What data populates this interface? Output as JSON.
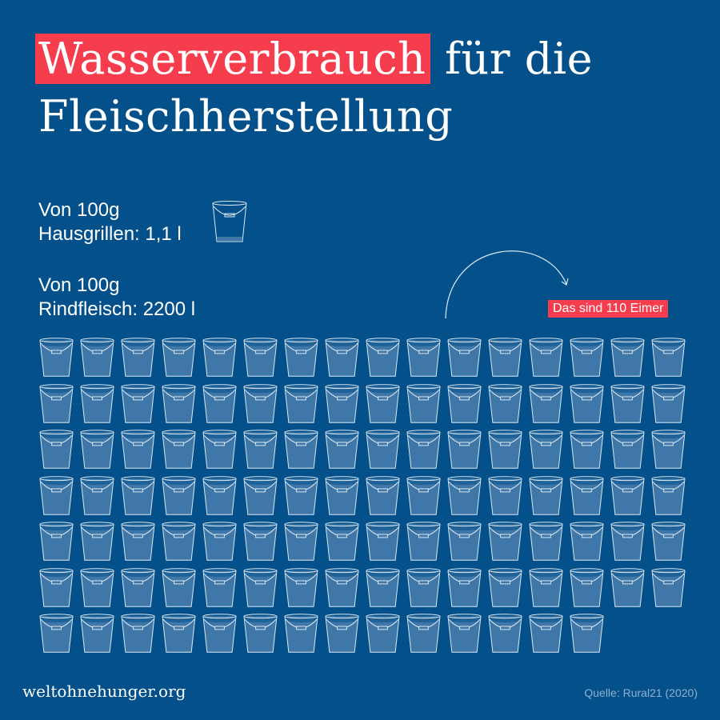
{
  "title": {
    "highlight": "Wasserverbrauch",
    "rest": " für die",
    "line2": "Fleischherstellung"
  },
  "crickets": {
    "line1": "Von 100g",
    "line2": "Hausgrillen: 1,1 l"
  },
  "beef": {
    "line1": "Von 100g",
    "line2": "Rindfleisch: 2200 l"
  },
  "badge": "Das sind 110 Eimer",
  "footer": {
    "brand": "weltohnehunger.org",
    "source": "Quelle: Rural21 (2020)"
  },
  "colors": {
    "background": "#03508a",
    "accent": "#f53d4e",
    "bucket_fill": "#3f78a8",
    "stroke": "#dce8f3"
  },
  "chart_data": {
    "type": "pictogram",
    "title": "Wasserverbrauch für die Fleischherstellung",
    "unit": "Liter pro 100g",
    "categories": [
      "Hausgrillen",
      "Rindfleisch"
    ],
    "values": [
      1.1,
      2200
    ],
    "icon_unit": "Eimer (bucket ≈ 20 l)",
    "icon_counts": [
      1,
      110
    ],
    "grid": {
      "columns": 16,
      "rows": 7,
      "last_row_count": 14
    },
    "annotation": "Das sind 110 Eimer",
    "source": "Quelle: Rural21 (2020)"
  }
}
